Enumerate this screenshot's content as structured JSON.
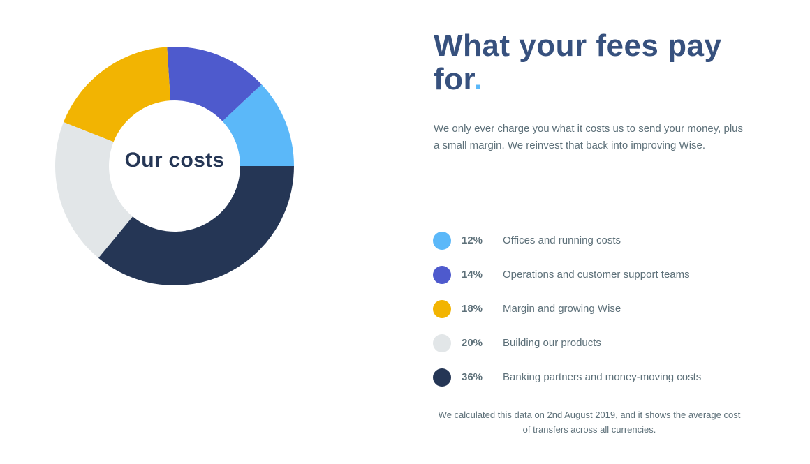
{
  "heading": {
    "text": "What your fees pay for",
    "dot": "."
  },
  "intro": "We only ever charge you what it costs us to send your money, plus a small margin. We reinvest that back into improving Wise.",
  "chart_data": {
    "type": "pie",
    "title": "Our costs",
    "start": "3 o'clock, counter-clockwise",
    "slices": [
      {
        "label": "Offices and running costs",
        "value": 12,
        "value_label": "12%",
        "color": "#5bb8f9"
      },
      {
        "label": "Operations and customer support teams",
        "value": 14,
        "value_label": "14%",
        "color": "#4e5acd"
      },
      {
        "label": "Margin and growing Wise",
        "value": 18,
        "value_label": "18%",
        "color": "#f2b402"
      },
      {
        "label": "Building our products",
        "value": 20,
        "value_label": "20%",
        "color": "#e2e6e8"
      },
      {
        "label": "Banking partners and money-moving costs",
        "value": 36,
        "value_label": "36%",
        "color": "#253655"
      }
    ]
  },
  "footnote": "We calculated this data on 2nd August 2019, and it shows the average cost of transfers across all currencies."
}
